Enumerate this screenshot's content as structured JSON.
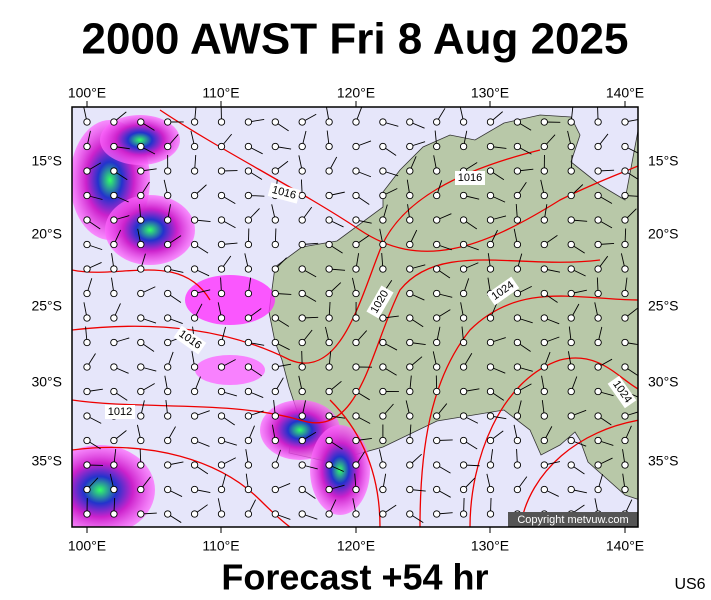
{
  "header": {
    "title": "2000 AWST Fri 8 Aug 2025"
  },
  "map": {
    "lon_labels": [
      "100°E",
      "110°E",
      "120°E",
      "130°E",
      "140°E"
    ],
    "lat_labels": [
      "15°S",
      "20°S",
      "25°S",
      "30°S",
      "35°S"
    ],
    "contour_labels": [
      "1016",
      "1016",
      "1020",
      "1024",
      "1016",
      "1012",
      "1024"
    ],
    "copyright": "Copyright metvuw.com"
  },
  "footer": {
    "forecast": "Forecast +54 hr",
    "code": "US6"
  }
}
